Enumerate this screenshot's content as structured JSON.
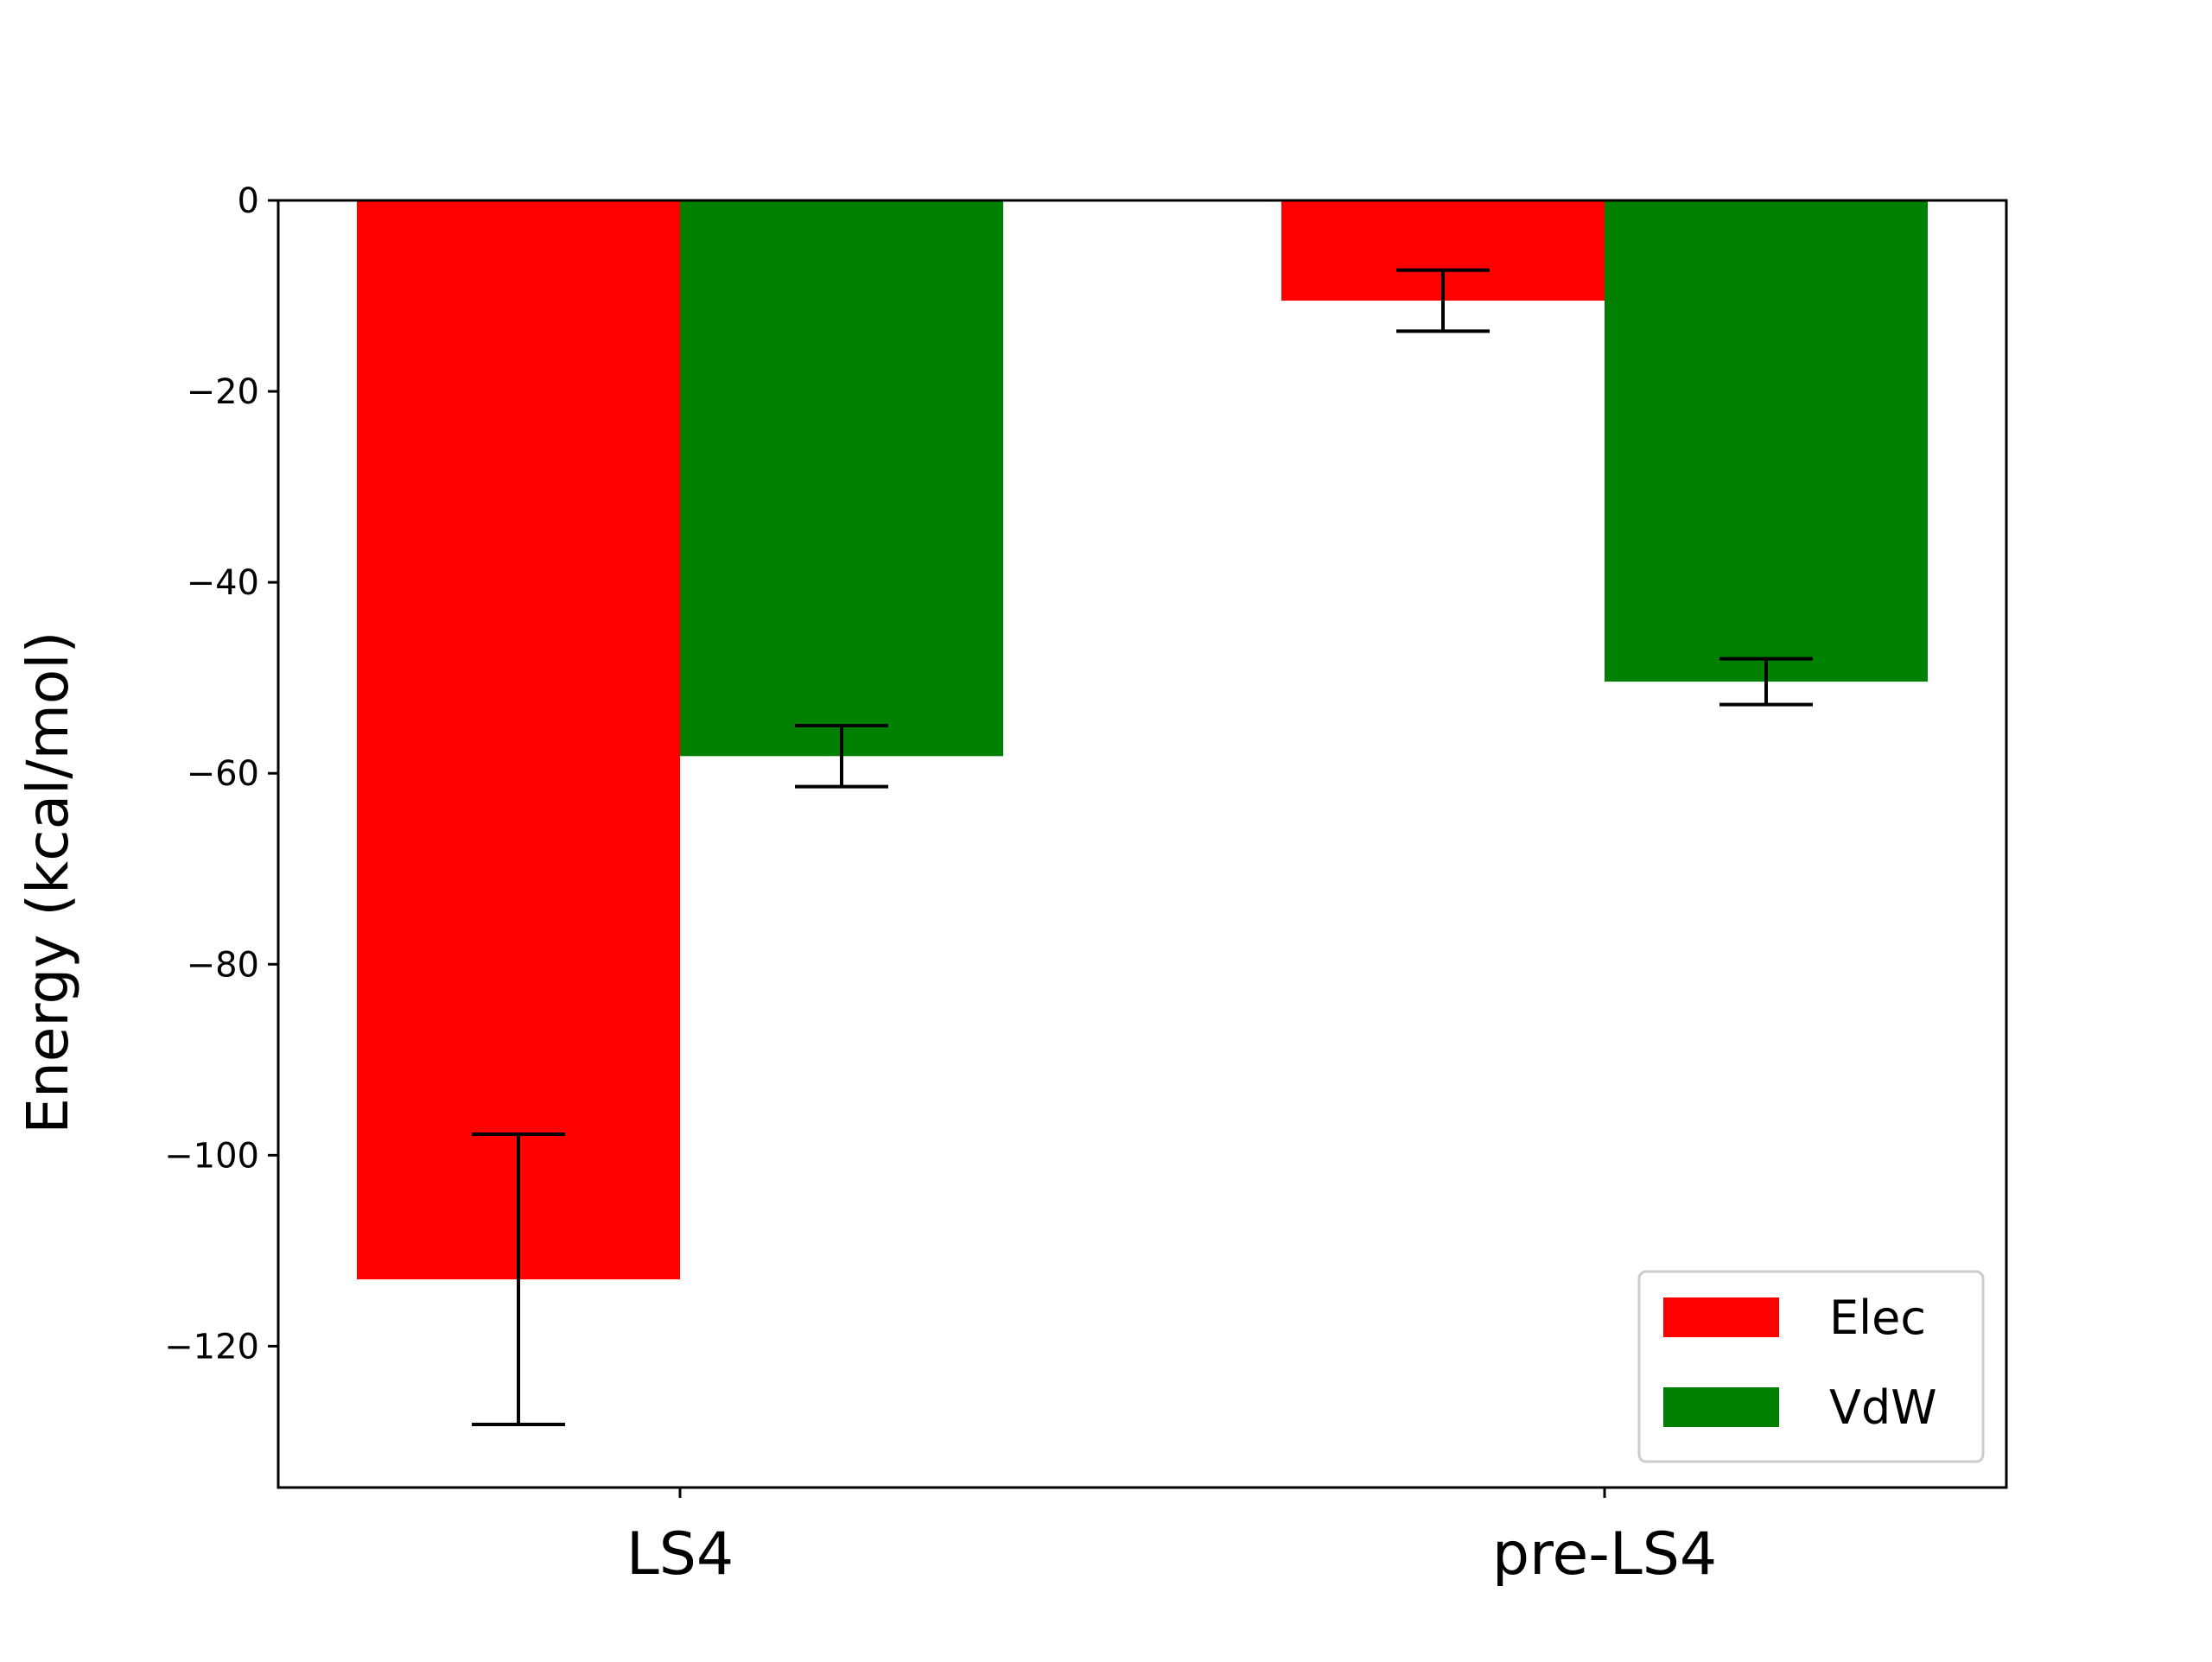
{
  "chart_data": {
    "type": "bar",
    "title": "",
    "xlabel": "",
    "ylabel": "Energy (kcal/mol)",
    "categories": [
      "LS4",
      "pre-LS4"
    ],
    "series": [
      {
        "name": "Elec",
        "color": "#ff0000",
        "values": [
          -113.0,
          -10.5
        ],
        "errors": [
          15.2,
          3.2
        ]
      },
      {
        "name": "VdW",
        "color": "#008000",
        "values": [
          -58.2,
          -50.4
        ],
        "errors": [
          3.2,
          2.4
        ]
      }
    ],
    "ylim": [
      -134.8,
      0
    ],
    "yticks": [
      0,
      -20,
      -40,
      -60,
      -80,
      -100,
      -120
    ],
    "ytick_labels": [
      "0",
      "−20",
      "−40",
      "−60",
      "−80",
      "−100",
      "−120"
    ],
    "grid": false,
    "legend_position": "lower right",
    "error_bar_color": "#000000"
  }
}
